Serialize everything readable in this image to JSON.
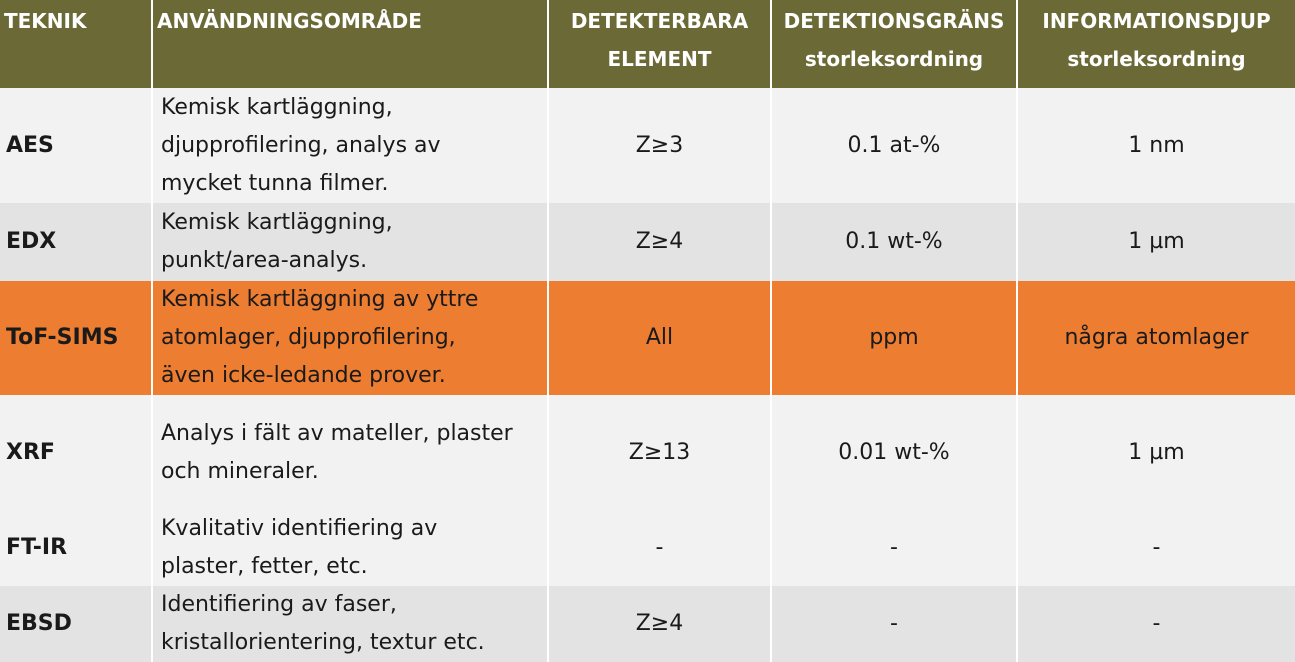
{
  "header": {
    "teknik": "TEKNIK",
    "anvandning": "ANVÄNDNINGSOMRÅDE",
    "element_l1": "DETEKTERBARA",
    "element_l2": "ELEMENT",
    "grans_l1": "DETEKTIONSGRÄNS",
    "grans_l2": "storleksordning",
    "djup_l1": "INFORMATIONSDJUP",
    "djup_l2": "storleksordning"
  },
  "rows": [
    {
      "teknik": "AES",
      "usage": [
        "Kemisk kartläggning,",
        "djupprofilering, analys av",
        "mycket tunna filmer."
      ],
      "element": "Z≥3",
      "grans": "0.1 at-%",
      "djup": "1 nm"
    },
    {
      "teknik": "EDX",
      "usage": [
        "Kemisk kartläggning,",
        "punkt/area-analys."
      ],
      "element": "Z≥4",
      "grans": "0.1 wt-%",
      "djup": "1 µm"
    },
    {
      "teknik": "ToF-SIMS",
      "usage": [
        "Kemisk kartläggning av yttre",
        "atomlager, djupprofilering,",
        "även icke-ledande prover."
      ],
      "element": "All",
      "grans": "ppm",
      "djup": "några atomlager"
    },
    {
      "teknik": "XRF",
      "usage": [
        "Analys i fält av mateller, plaster",
        "och mineraler."
      ],
      "element": "Z≥13",
      "grans": "0.01 wt-%",
      "djup": "1 µm"
    },
    {
      "teknik": "FT-IR",
      "usage": [
        "Kvalitativ identifiering av",
        "plaster, fetter, etc."
      ],
      "element": "-",
      "grans": "-",
      "djup": "-"
    },
    {
      "teknik": "EBSD",
      "usage": [
        "Identifiering av faser,",
        "kristallorientering, textur etc."
      ],
      "element": "Z≥4",
      "grans": "-",
      "djup": "-"
    }
  ]
}
